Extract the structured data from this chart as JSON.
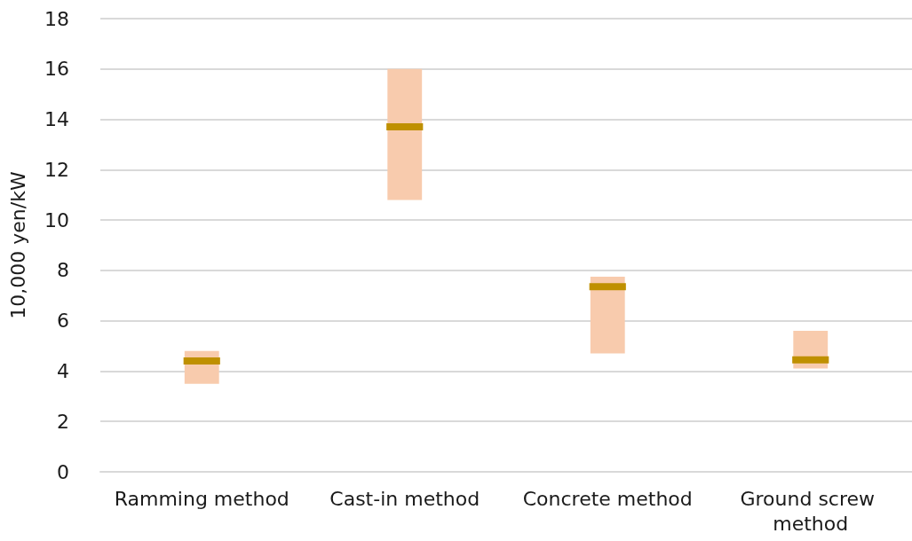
{
  "chart_data": {
    "type": "box",
    "ylabel": "10,000 yen/kW",
    "categories": [
      "Ramming method",
      "Cast-in method",
      "Concrete method",
      "Ground screw method"
    ],
    "series": [
      {
        "color": "#f8cbad",
        "boxes": [
          {
            "low": 3.5,
            "q1": 3.5,
            "median": 4.4,
            "q3": 4.8,
            "high": 4.8
          },
          {
            "low": 10.8,
            "q1": 10.8,
            "median": 13.7,
            "q3": 16,
            "high": 16
          },
          {
            "low": 4.7,
            "q1": 4.7,
            "median": 7.35,
            "q3": 7.75,
            "high": 7.75
          },
          {
            "low": 4.1,
            "q1": 4.1,
            "median": 4.45,
            "q3": 5.6,
            "high": 5.6
          }
        ]
      }
    ],
    "ylim": [
      0,
      18
    ],
    "yticks": [
      0,
      2,
      4,
      6,
      8,
      10,
      12,
      14,
      16,
      18
    ],
    "grid": "y"
  }
}
